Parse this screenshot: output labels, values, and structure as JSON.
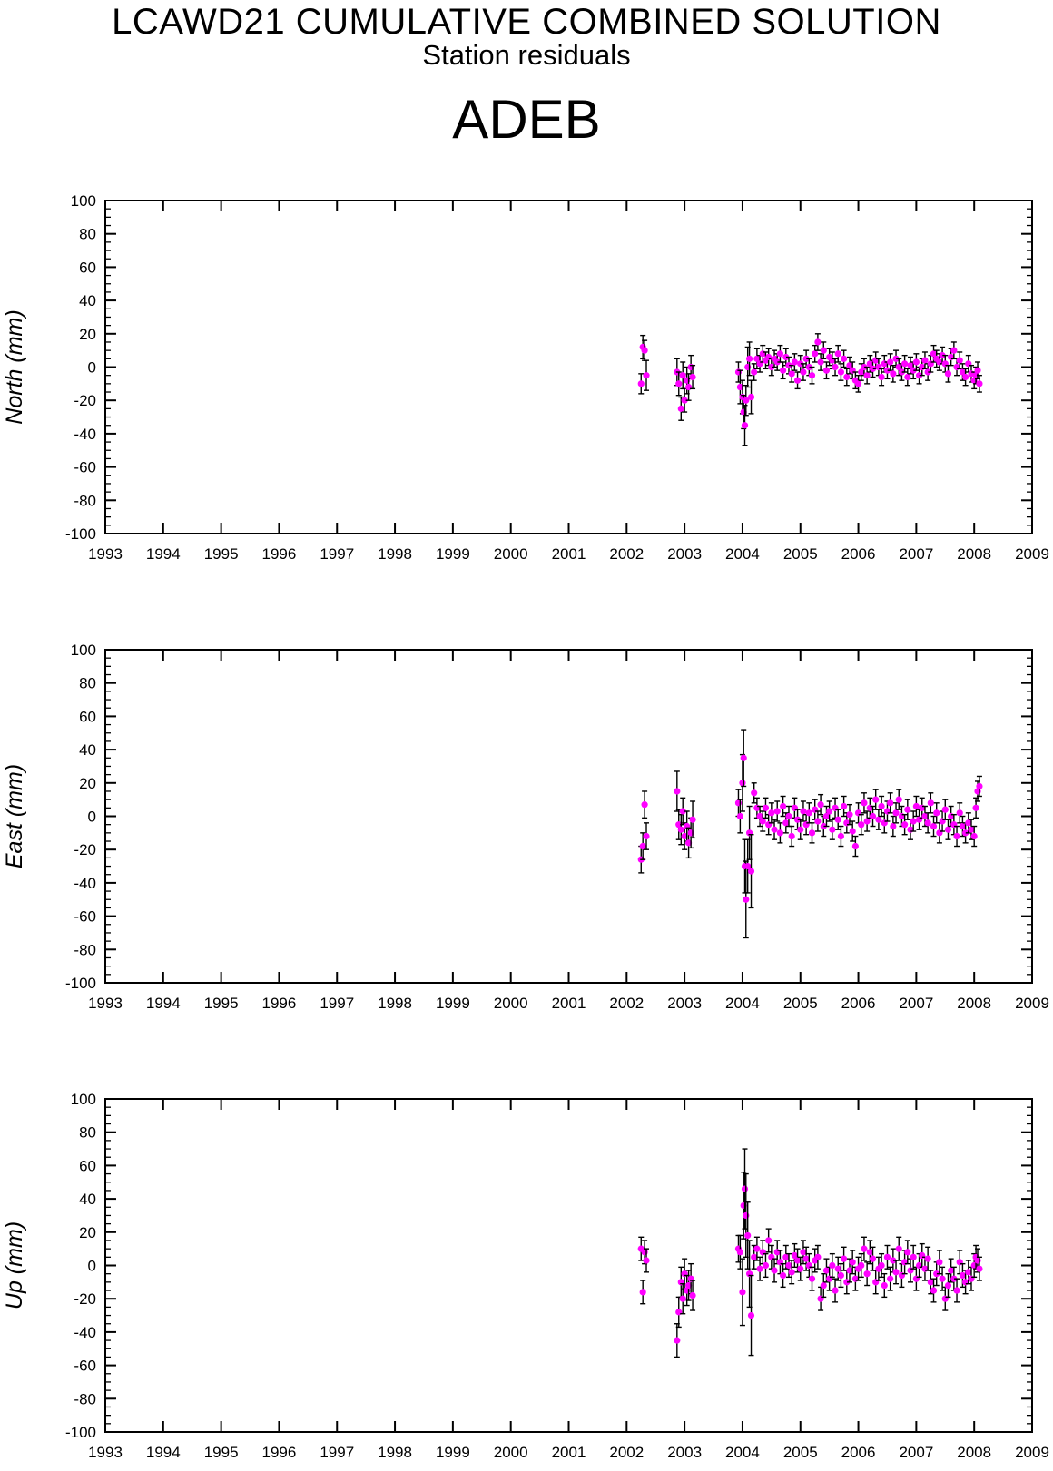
{
  "header": {
    "title": "LCAWD21 CUMULATIVE COMBINED SOLUTION",
    "subtitle": "Station residuals",
    "station": "ADEB"
  },
  "colors": {
    "marker": "#ff00ff",
    "errorbar": "#000000",
    "axis": "#000000"
  },
  "chart_data": [
    {
      "type": "scatter",
      "ylabel": "North (mm)",
      "xlim": [
        1993,
        2009
      ],
      "ylim": [
        -100,
        100
      ],
      "xticks": [
        "1993",
        "1994",
        "1995",
        "1996",
        "1997",
        "1998",
        "1999",
        "2000",
        "2001",
        "2002",
        "2003",
        "2004",
        "2005",
        "2006",
        "2007",
        "2008",
        "2009"
      ],
      "yticks": [
        "100",
        "80",
        "60",
        "40",
        "20",
        "0",
        "-20",
        "-40",
        "-60",
        "-80",
        "-100"
      ],
      "x": [
        2002.25,
        2002.28,
        2002.31,
        2002.34,
        2002.87,
        2002.9,
        2002.94,
        2002.97,
        2003.0,
        2003.04,
        2003.07,
        2003.11,
        2003.14,
        2003.93,
        2003.96,
        2004.0,
        2004.02,
        2004.04,
        2004.06,
        2004.09,
        2004.12,
        2004.15,
        2004.2,
        2004.25,
        2004.3,
        2004.35,
        2004.4,
        2004.45,
        2004.5,
        2004.55,
        2004.6,
        2004.65,
        2004.7,
        2004.75,
        2004.8,
        2004.85,
        2004.9,
        2004.95,
        2005.0,
        2005.05,
        2005.1,
        2005.15,
        2005.2,
        2005.25,
        2005.3,
        2005.35,
        2005.4,
        2005.45,
        2005.5,
        2005.55,
        2005.6,
        2005.65,
        2005.7,
        2005.75,
        2005.8,
        2005.85,
        2005.9,
        2005.95,
        2006.0,
        2006.05,
        2006.1,
        2006.15,
        2006.2,
        2006.25,
        2006.3,
        2006.35,
        2006.4,
        2006.45,
        2006.5,
        2006.55,
        2006.6,
        2006.65,
        2006.7,
        2006.75,
        2006.8,
        2006.85,
        2006.9,
        2006.95,
        2007.0,
        2007.05,
        2007.1,
        2007.15,
        2007.2,
        2007.25,
        2007.3,
        2007.35,
        2007.4,
        2007.45,
        2007.5,
        2007.55,
        2007.6,
        2007.65,
        2007.7,
        2007.75,
        2007.8,
        2007.85,
        2007.9,
        2007.95,
        2008.0,
        2008.03,
        2008.06,
        2008.09
      ],
      "y": [
        -10,
        12,
        10,
        -5,
        -3,
        -10,
        -25,
        -5,
        -20,
        -8,
        -12,
        0,
        -6,
        -3,
        -12,
        -18,
        -27,
        -35,
        -20,
        0,
        5,
        -18,
        -3,
        5,
        2,
        8,
        4,
        6,
        0,
        5,
        3,
        8,
        -2,
        6,
        1,
        -4,
        3,
        -8,
        2,
        -3,
        5,
        0,
        -5,
        8,
        15,
        3,
        10,
        -2,
        6,
        4,
        0,
        8,
        -3,
        5,
        -6,
        1,
        -2,
        -8,
        -10,
        -3,
        0,
        -5,
        2,
        -1,
        4,
        0,
        -6,
        2,
        -2,
        3,
        -4,
        5,
        0,
        -3,
        2,
        -6,
        1,
        -2,
        3,
        -5,
        0,
        4,
        -3,
        2,
        8,
        5,
        3,
        7,
        2,
        -4,
        6,
        10,
        0,
        4,
        -3,
        -6,
        2,
        -4,
        -8,
        -5,
        -2,
        -10
      ],
      "err": [
        6,
        7,
        6,
        9,
        8,
        7,
        7,
        8,
        7,
        8,
        8,
        7,
        7,
        6,
        10,
        10,
        10,
        12,
        9,
        12,
        10,
        10,
        5,
        6,
        5,
        5,
        5,
        5,
        5,
        5,
        5,
        5,
        5,
        5,
        5,
        5,
        5,
        5,
        5,
        5,
        5,
        5,
        5,
        5,
        5,
        5,
        5,
        5,
        5,
        5,
        5,
        5,
        5,
        5,
        5,
        5,
        5,
        5,
        5,
        5,
        5,
        5,
        5,
        5,
        5,
        5,
        5,
        5,
        5,
        5,
        5,
        5,
        5,
        5,
        5,
        5,
        5,
        5,
        5,
        5,
        5,
        5,
        5,
        5,
        5,
        5,
        5,
        5,
        5,
        5,
        5,
        5,
        5,
        5,
        5,
        5,
        5,
        5,
        5,
        5,
        5,
        5
      ]
    },
    {
      "type": "scatter",
      "ylabel": "East (mm)",
      "xlim": [
        1993,
        2009
      ],
      "ylim": [
        -100,
        100
      ],
      "xticks": [
        "1993",
        "1994",
        "1995",
        "1996",
        "1997",
        "1998",
        "1999",
        "2000",
        "2001",
        "2002",
        "2003",
        "2004",
        "2005",
        "2006",
        "2007",
        "2008",
        "2009"
      ],
      "yticks": [
        "100",
        "80",
        "60",
        "40",
        "20",
        "0",
        "-20",
        "-40",
        "-60",
        "-80",
        "-100"
      ],
      "x": [
        2002.25,
        2002.28,
        2002.31,
        2002.34,
        2002.87,
        2002.9,
        2002.94,
        2002.97,
        2003.0,
        2003.04,
        2003.07,
        2003.11,
        2003.14,
        2003.93,
        2003.96,
        2004.0,
        2004.02,
        2004.04,
        2004.06,
        2004.09,
        2004.12,
        2004.15,
        2004.2,
        2004.25,
        2004.3,
        2004.35,
        2004.4,
        2004.45,
        2004.5,
        2004.55,
        2004.6,
        2004.65,
        2004.7,
        2004.75,
        2004.8,
        2004.85,
        2004.9,
        2004.95,
        2005.0,
        2005.05,
        2005.1,
        2005.15,
        2005.2,
        2005.25,
        2005.3,
        2005.35,
        2005.4,
        2005.45,
        2005.5,
        2005.55,
        2005.6,
        2005.65,
        2005.7,
        2005.75,
        2005.8,
        2005.85,
        2005.9,
        2005.95,
        2006.0,
        2006.05,
        2006.1,
        2006.15,
        2006.2,
        2006.25,
        2006.3,
        2006.35,
        2006.4,
        2006.45,
        2006.5,
        2006.55,
        2006.6,
        2006.65,
        2006.7,
        2006.75,
        2006.8,
        2006.85,
        2006.9,
        2006.95,
        2007.0,
        2007.05,
        2007.1,
        2007.15,
        2007.2,
        2007.25,
        2007.3,
        2007.35,
        2007.4,
        2007.45,
        2007.5,
        2007.55,
        2007.6,
        2007.65,
        2007.7,
        2007.75,
        2007.8,
        2007.85,
        2007.9,
        2007.95,
        2008.0,
        2008.03,
        2008.06,
        2008.09
      ],
      "y": [
        -26,
        -18,
        7,
        -12,
        15,
        -5,
        -8,
        3,
        -12,
        -6,
        -16,
        -10,
        -2,
        8,
        0,
        20,
        35,
        -30,
        -50,
        -30,
        -10,
        -33,
        14,
        5,
        0,
        -3,
        5,
        -5,
        2,
        -8,
        3,
        -10,
        6,
        -4,
        0,
        -12,
        5,
        -2,
        -8,
        3,
        -5,
        2,
        -10,
        4,
        -3,
        7,
        -6,
        0,
        3,
        -8,
        5,
        -2,
        -12,
        6,
        -4,
        1,
        -9,
        -18,
        2,
        -5,
        8,
        -3,
        5,
        0,
        10,
        -2,
        6,
        -4,
        3,
        8,
        -6,
        2,
        10,
        0,
        -5,
        4,
        -8,
        -3,
        6,
        -2,
        5,
        0,
        -4,
        8,
        -6,
        2,
        -10,
        -3,
        4,
        -8,
        0,
        -5,
        -12,
        2,
        -6,
        -10,
        -4,
        -8,
        -12,
        5,
        15,
        18
      ],
      "err": [
        8,
        8,
        8,
        8,
        12,
        9,
        9,
        8,
        8,
        9,
        9,
        9,
        11,
        8,
        10,
        17,
        17,
        16,
        23,
        16,
        16,
        22,
        6,
        6,
        6,
        6,
        6,
        6,
        6,
        6,
        6,
        6,
        6,
        6,
        6,
        6,
        6,
        6,
        6,
        6,
        6,
        6,
        6,
        6,
        6,
        6,
        6,
        6,
        6,
        6,
        6,
        6,
        6,
        6,
        6,
        6,
        6,
        6,
        6,
        6,
        6,
        6,
        6,
        6,
        6,
        6,
        6,
        6,
        6,
        6,
        6,
        6,
        6,
        6,
        6,
        6,
        6,
        6,
        6,
        6,
        6,
        6,
        6,
        6,
        6,
        6,
        6,
        6,
        6,
        6,
        6,
        6,
        6,
        6,
        6,
        6,
        6,
        6,
        6,
        6,
        6,
        6
      ]
    },
    {
      "type": "scatter",
      "ylabel": "Up (mm)",
      "xlim": [
        1993,
        2009
      ],
      "ylim": [
        -100,
        100
      ],
      "xticks": [
        "1993",
        "1994",
        "1995",
        "1996",
        "1997",
        "1998",
        "1999",
        "2000",
        "2001",
        "2002",
        "2003",
        "2004",
        "2005",
        "2006",
        "2007",
        "2008",
        "2009"
      ],
      "yticks": [
        "100",
        "80",
        "60",
        "40",
        "20",
        "0",
        "-20",
        "-40",
        "-60",
        "-80",
        "-100"
      ],
      "x": [
        2002.25,
        2002.28,
        2002.31,
        2002.34,
        2002.87,
        2002.9,
        2002.94,
        2002.97,
        2003.0,
        2003.04,
        2003.07,
        2003.11,
        2003.14,
        2003.93,
        2003.96,
        2004.0,
        2004.02,
        2004.04,
        2004.06,
        2004.09,
        2004.12,
        2004.15,
        2004.2,
        2004.25,
        2004.3,
        2004.35,
        2004.4,
        2004.45,
        2004.5,
        2004.55,
        2004.6,
        2004.65,
        2004.7,
        2004.75,
        2004.8,
        2004.85,
        2004.9,
        2004.95,
        2005.0,
        2005.05,
        2005.1,
        2005.15,
        2005.2,
        2005.25,
        2005.3,
        2005.35,
        2005.4,
        2005.45,
        2005.5,
        2005.55,
        2005.6,
        2005.65,
        2005.7,
        2005.75,
        2005.8,
        2005.85,
        2005.9,
        2005.95,
        2006.0,
        2006.05,
        2006.1,
        2006.15,
        2006.2,
        2006.25,
        2006.3,
        2006.35,
        2006.4,
        2006.45,
        2006.5,
        2006.55,
        2006.6,
        2006.65,
        2006.7,
        2006.75,
        2006.8,
        2006.85,
        2006.9,
        2006.95,
        2007.0,
        2007.05,
        2007.1,
        2007.15,
        2007.2,
        2007.25,
        2007.3,
        2007.35,
        2007.4,
        2007.45,
        2007.5,
        2007.55,
        2007.6,
        2007.65,
        2007.7,
        2007.75,
        2007.8,
        2007.85,
        2007.9,
        2007.95,
        2008.0,
        2008.03,
        2008.06,
        2008.09
      ],
      "y": [
        10,
        -16,
        8,
        3,
        -45,
        -28,
        -10,
        -20,
        -5,
        -15,
        -12,
        -8,
        -18,
        10,
        8,
        -16,
        36,
        46,
        30,
        18,
        -5,
        -30,
        5,
        10,
        -2,
        8,
        0,
        15,
        5,
        -3,
        8,
        2,
        -6,
        5,
        0,
        -4,
        6,
        3,
        -2,
        8,
        4,
        0,
        -8,
        3,
        5,
        -20,
        -12,
        -3,
        -8,
        0,
        -15,
        -2,
        -6,
        4,
        -10,
        -3,
        2,
        -8,
        -2,
        0,
        10,
        -5,
        8,
        4,
        -10,
        -2,
        0,
        -12,
        5,
        -8,
        3,
        -4,
        10,
        -6,
        2,
        8,
        -3,
        5,
        -8,
        0,
        6,
        -2,
        4,
        -10,
        -15,
        -5,
        2,
        -8,
        -20,
        -12,
        -3,
        -8,
        -15,
        2,
        -6,
        -10,
        -4,
        -8,
        0,
        5,
        3,
        -2
      ],
      "err": [
        7,
        7,
        7,
        7,
        10,
        9,
        9,
        9,
        9,
        9,
        9,
        9,
        9,
        8,
        10,
        20,
        20,
        24,
        25,
        20,
        20,
        24,
        7,
        7,
        7,
        7,
        7,
        7,
        7,
        7,
        7,
        7,
        7,
        7,
        7,
        7,
        7,
        7,
        7,
        7,
        7,
        7,
        7,
        7,
        7,
        7,
        7,
        7,
        7,
        7,
        7,
        7,
        7,
        7,
        7,
        7,
        7,
        7,
        7,
        7,
        7,
        7,
        7,
        7,
        7,
        7,
        7,
        7,
        7,
        7,
        7,
        7,
        7,
        7,
        7,
        7,
        7,
        7,
        7,
        7,
        7,
        7,
        7,
        7,
        7,
        7,
        7,
        7,
        7,
        7,
        7,
        7,
        7,
        7,
        7,
        7,
        7,
        7,
        7,
        7,
        7,
        7
      ]
    }
  ]
}
